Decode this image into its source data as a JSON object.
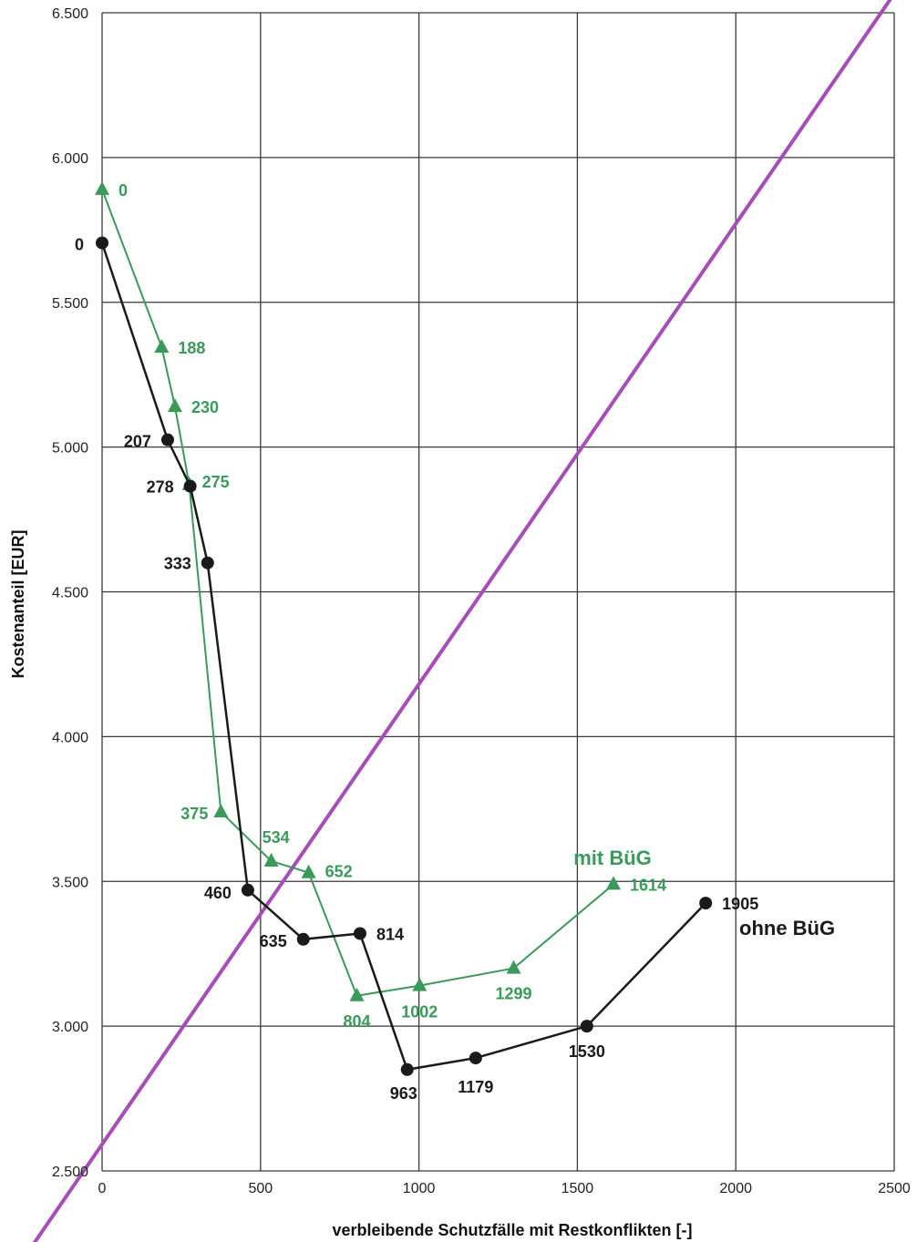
{
  "chart_data": {
    "type": "line",
    "xlabel": "verbleibende Schutzfälle mit Restkonflikten [-]",
    "ylabel": "Kostenanteil [EUR]",
    "xlim": [
      0,
      2500
    ],
    "ylim": [
      2500,
      6500
    ],
    "x_ticks": [
      "0",
      "500",
      "1000",
      "1500",
      "2000",
      "2500"
    ],
    "y_ticks": [
      "2.500",
      "3.000",
      "3.500",
      "4.000",
      "4.500",
      "5.000",
      "5.500",
      "6.000",
      "6.500"
    ],
    "grid": true,
    "series": [
      {
        "name": "mit BüG",
        "color": "#3a9a5a",
        "marker": "triangle",
        "points": [
          {
            "x": 0,
            "y": 5890,
            "label": "0"
          },
          {
            "x": 188,
            "y": 5345,
            "label": "188"
          },
          {
            "x": 230,
            "y": 5140,
            "label": "230"
          },
          {
            "x": 275,
            "y": 4870,
            "label": "275"
          },
          {
            "x": 375,
            "y": 3740,
            "label": "375"
          },
          {
            "x": 534,
            "y": 3570,
            "label": "534"
          },
          {
            "x": 652,
            "y": 3530,
            "label": "652"
          },
          {
            "x": 804,
            "y": 3105,
            "label": "804"
          },
          {
            "x": 1002,
            "y": 3140,
            "label": "1002"
          },
          {
            "x": 1299,
            "y": 3200,
            "label": "1299"
          },
          {
            "x": 1614,
            "y": 3490,
            "label": "1614"
          }
        ]
      },
      {
        "name": "ohne BüG",
        "color": "#1a1a1a",
        "marker": "circle",
        "points": [
          {
            "x": 0,
            "y": 5705,
            "label": "0"
          },
          {
            "x": 207,
            "y": 5025,
            "label": "207"
          },
          {
            "x": 278,
            "y": 4865,
            "label": "278"
          },
          {
            "x": 333,
            "y": 4600,
            "label": "333"
          },
          {
            "x": 460,
            "y": 3470,
            "label": "460"
          },
          {
            "x": 635,
            "y": 3300,
            "label": "635"
          },
          {
            "x": 814,
            "y": 3320,
            "label": "814"
          },
          {
            "x": 963,
            "y": 2850,
            "label": "963"
          },
          {
            "x": 1179,
            "y": 2890,
            "label": "1179"
          },
          {
            "x": 1530,
            "y": 3000,
            "label": "1530"
          },
          {
            "x": 1905,
            "y": 3425,
            "label": "1905"
          }
        ]
      }
    ],
    "reference_line": {
      "color": "#a64db8",
      "from": {
        "x": -215,
        "y": 2250
      },
      "to": {
        "x": 2490,
        "y": 6550
      }
    }
  }
}
